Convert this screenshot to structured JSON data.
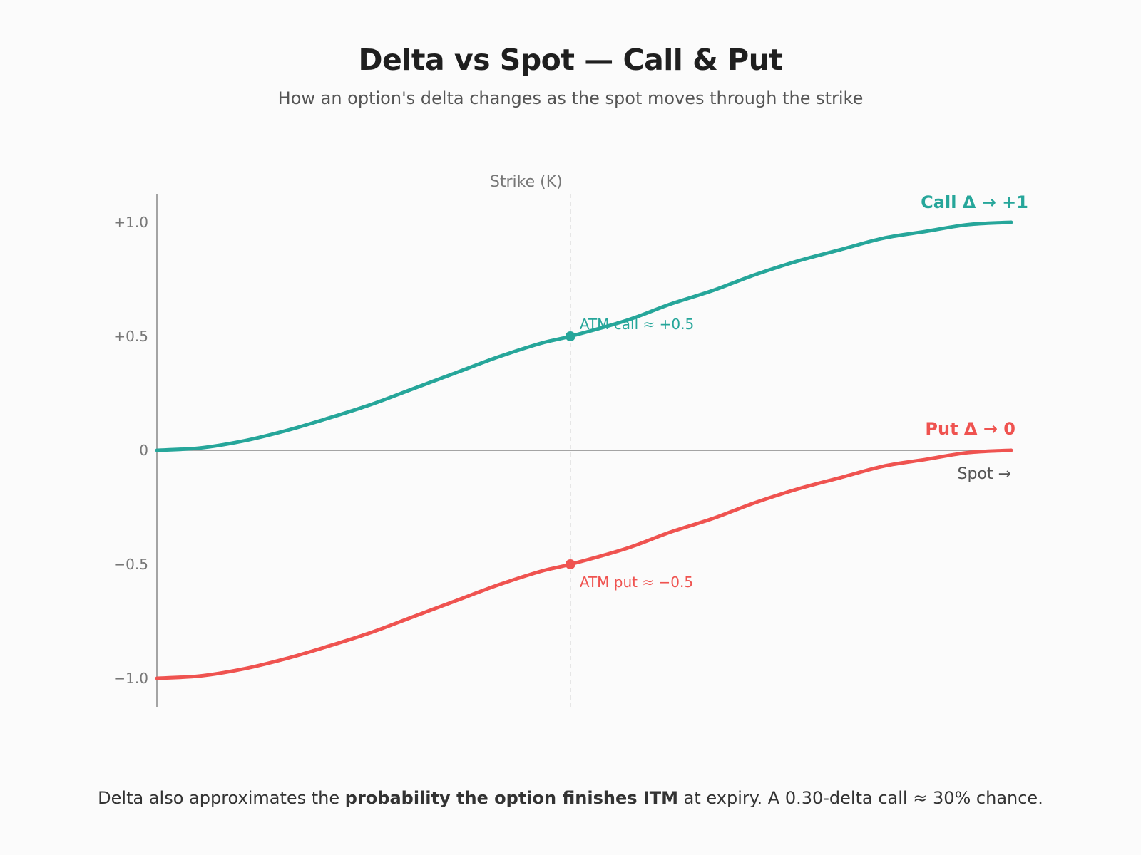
{
  "header": {
    "title": "Delta vs Spot — Call & Put",
    "subtitle": "How an option's delta changes as the spot moves through the strike"
  },
  "footer": {
    "text_before": "Delta also approximates the ",
    "text_bold": "probability the option finishes ITM",
    "text_after": " at expiry. A 0.30-delta call ≈ 30% chance."
  },
  "chart_data": {
    "type": "line",
    "title": "Delta vs Spot — Call & Put",
    "subtitle": "How an option's delta changes as the spot moves through the strike",
    "xlabel": "Spot →",
    "ylabel": "",
    "x_range": [
      0,
      1
    ],
    "ylim": [
      -1.1,
      1.12
    ],
    "strike_x": 0.484,
    "strike_label": "Strike (K)",
    "y_ticks": [
      1.0,
      0.5,
      0,
      -0.5,
      -1.0
    ],
    "y_tick_labels": [
      "+1.0",
      "+0.5",
      "0",
      "−0.5",
      "−1.0"
    ],
    "grid": false,
    "series": [
      {
        "name": "Call Δ → +1",
        "color": "#26a69a",
        "x": [
          0,
          0.05,
          0.1,
          0.15,
          0.2,
          0.25,
          0.3,
          0.35,
          0.4,
          0.45,
          0.484,
          0.55,
          0.6,
          0.65,
          0.7,
          0.75,
          0.8,
          0.85,
          0.9,
          0.95,
          1.0
        ],
        "y": [
          0.0,
          0.01,
          0.04,
          0.085,
          0.14,
          0.2,
          0.27,
          0.34,
          0.41,
          0.47,
          0.5,
          0.57,
          0.64,
          0.7,
          0.77,
          0.83,
          0.88,
          0.93,
          0.96,
          0.99,
          1.0
        ]
      },
      {
        "name": "Put Δ → 0",
        "color": "#ef5350",
        "x": [
          0,
          0.05,
          0.1,
          0.15,
          0.2,
          0.25,
          0.3,
          0.35,
          0.4,
          0.45,
          0.484,
          0.55,
          0.6,
          0.65,
          0.7,
          0.75,
          0.8,
          0.85,
          0.9,
          0.95,
          1.0
        ],
        "y": [
          -1.0,
          -0.99,
          -0.96,
          -0.915,
          -0.86,
          -0.8,
          -0.73,
          -0.66,
          -0.59,
          -0.53,
          -0.5,
          -0.43,
          -0.36,
          -0.3,
          -0.23,
          -0.17,
          -0.12,
          -0.07,
          -0.04,
          -0.01,
          0.0
        ]
      }
    ],
    "annotations": [
      {
        "series": 0,
        "x": 0.484,
        "y": 0.5,
        "text": "ATM call ≈ +0.5"
      },
      {
        "series": 1,
        "x": 0.484,
        "y": -0.5,
        "text": "ATM put ≈ −0.5"
      }
    ]
  }
}
